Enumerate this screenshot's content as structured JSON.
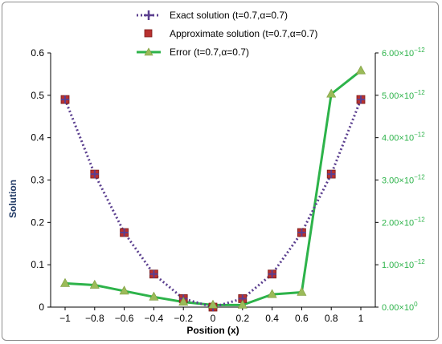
{
  "chart_data": {
    "type": "line",
    "xlabel": "Position (x)",
    "ylabel": "Solution",
    "x": [
      -1,
      -0.8,
      -0.6,
      -0.4,
      -0.2,
      0,
      0.2,
      0.4,
      0.6,
      0.8,
      1
    ],
    "x_tick_labels": [
      "−1",
      "−0.8",
      "−0.6",
      "−0.4",
      "−0.2",
      "0",
      "0.2",
      "0.4",
      "0.6",
      "0.8",
      "1"
    ],
    "ylim": [
      0,
      0.6
    ],
    "y_tick_labels": [
      "0",
      "0.1",
      "0.2",
      "0.3",
      "0.4",
      "0.5",
      "0.6"
    ],
    "y2lim": [
      0,
      6e-12
    ],
    "y2_tick_labels": [
      "0.00×10",
      "1.00×10",
      "2.00×10",
      "3.00×10",
      "4.00×10",
      "5.00×10",
      "6.00×10"
    ],
    "y2_tick_exponents": [
      "0",
      "−12",
      "−12",
      "−12",
      "−12",
      "−12",
      "−12"
    ],
    "legend_position": "top-center",
    "grid": false,
    "series": [
      {
        "name": "Exact solution (t=0.7,α=0.7)",
        "axis": "left",
        "style": "dotted line",
        "color": "#5b3f8f",
        "values": [
          0.49,
          0.314,
          0.176,
          0.078,
          0.02,
          0.0,
          0.02,
          0.078,
          0.176,
          0.314,
          0.49
        ]
      },
      {
        "name": "Approximate solution (t=0.7,α=0.7)",
        "axis": "left",
        "style": "square markers",
        "color": "#b8312f",
        "values": [
          0.49,
          0.314,
          0.176,
          0.078,
          0.02,
          0.0,
          0.02,
          0.078,
          0.176,
          0.314,
          0.49
        ]
      },
      {
        "name": "Error (t=0.7,α=0.7)",
        "axis": "right",
        "style": "line with triangle markers",
        "color": "#2db34a",
        "values": [
          5.6e-13,
          5.2e-13,
          3.8e-13,
          2.4e-13,
          1.2e-13,
          5e-14,
          5e-14,
          3e-13,
          3.5e-13,
          5.03e-12,
          5.58e-12
        ]
      }
    ]
  }
}
